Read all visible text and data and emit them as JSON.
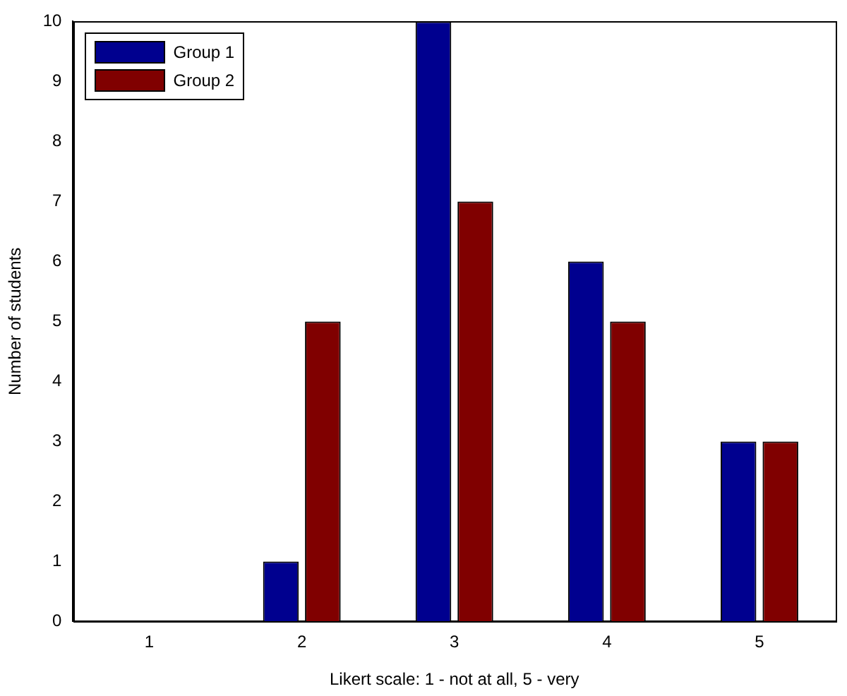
{
  "chart_data": {
    "type": "bar",
    "xlabel": "Likert scale: 1 - not at all, 5 - very",
    "ylabel": "Number of students",
    "categories": [
      "1",
      "2",
      "3",
      "4",
      "5"
    ],
    "series": [
      {
        "name": "Group 1",
        "color": "#00008f",
        "values": [
          0,
          1,
          10,
          6,
          3
        ]
      },
      {
        "name": "Group 2",
        "color": "#800000",
        "values": [
          0,
          5,
          7,
          5,
          3
        ]
      }
    ],
    "ylim": [
      0,
      10
    ],
    "yticks": [
      0,
      1,
      2,
      3,
      4,
      5,
      6,
      7,
      8,
      9,
      10
    ],
    "grid": false,
    "legend": "top left"
  }
}
